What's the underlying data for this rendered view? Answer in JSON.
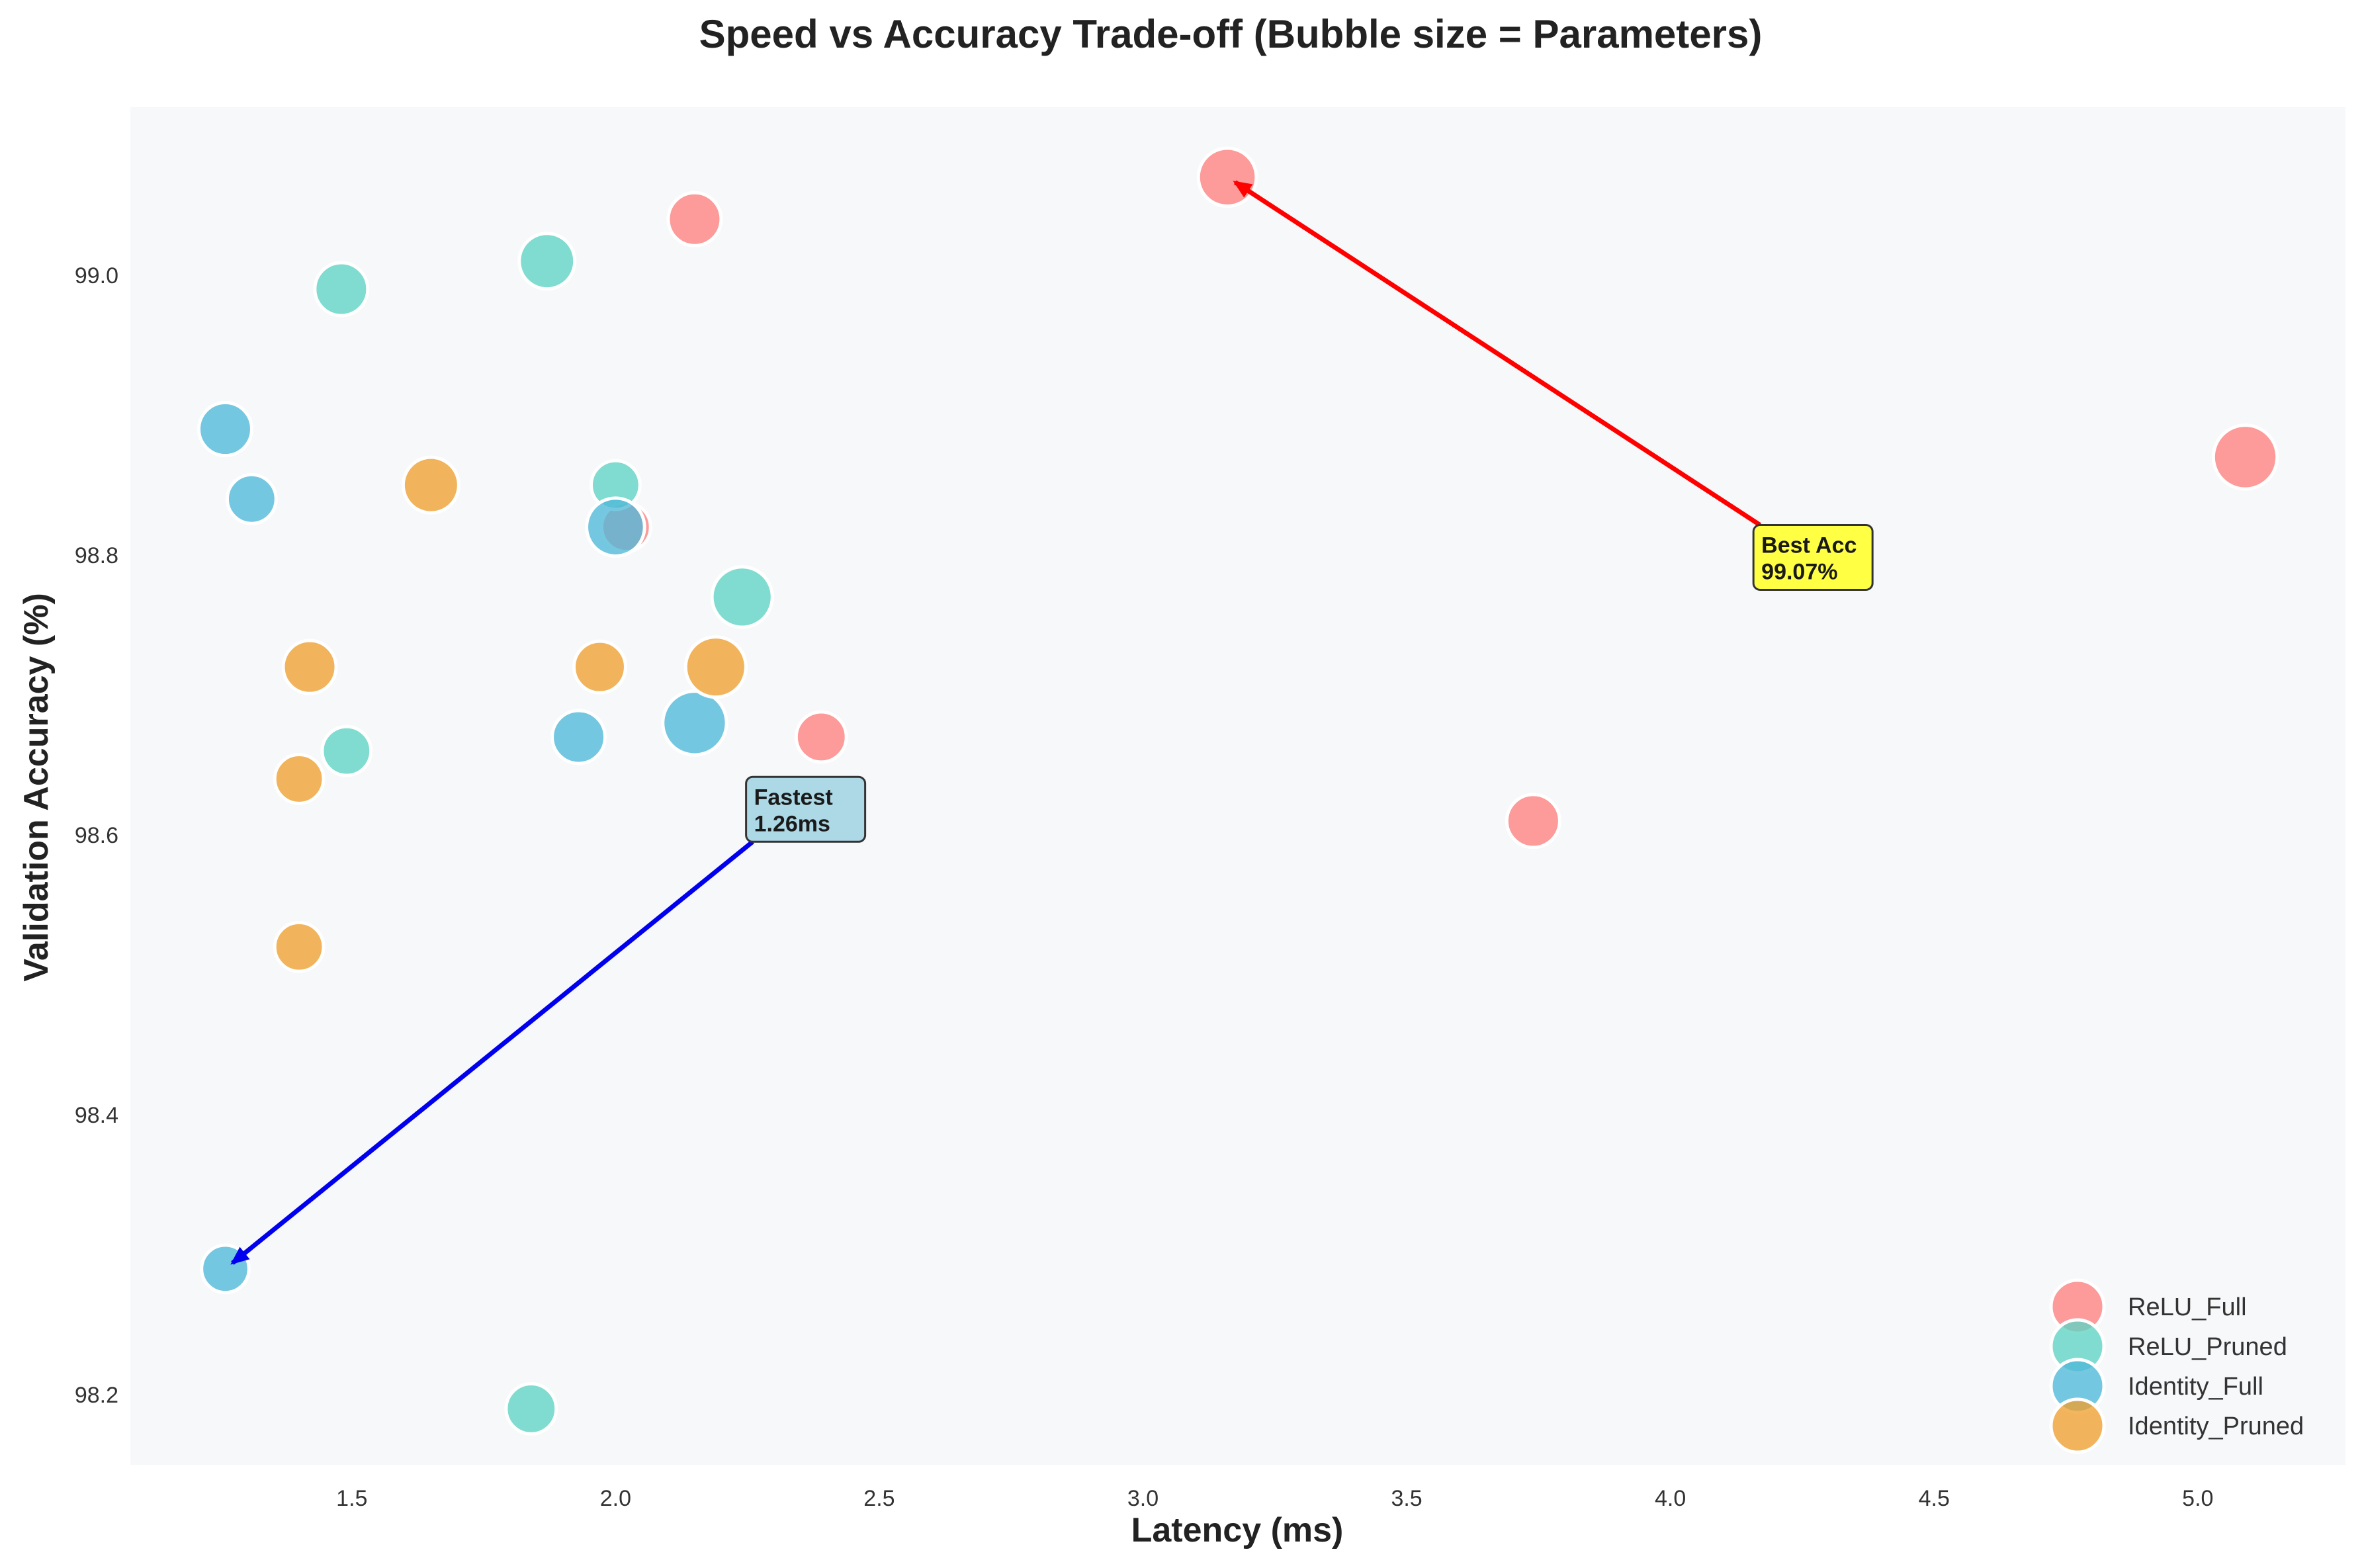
{
  "chart_data": {
    "type": "scatter",
    "title": "Speed vs Accuracy Trade-off (Bubble size = Parameters)",
    "xlabel": "Latency (ms)",
    "ylabel": "Validation Accuracy (%)",
    "xlim": [
      1.08,
      5.28
    ],
    "ylim": [
      98.15,
      99.12
    ],
    "xticks": [
      1.5,
      2.0,
      2.5,
      3.0,
      3.5,
      4.0,
      4.5,
      5.0
    ],
    "xtick_labels": [
      "1.5",
      "2.0",
      "2.5",
      "3.0",
      "3.5",
      "4.0",
      "4.5",
      "5.0"
    ],
    "yticks": [
      98.2,
      98.4,
      98.6,
      98.8,
      99.0
    ],
    "ytick_labels": [
      "98.2",
      "98.4",
      "98.6",
      "98.8",
      "99.0"
    ],
    "grid": false,
    "legend_position": "bottom-right",
    "series": [
      {
        "name": "ReLU_Full",
        "color": "#ff7f7f",
        "points": [
          {
            "x": 3.16,
            "y": 99.07,
            "size": 1.2
          },
          {
            "x": 2.15,
            "y": 99.04,
            "size": 1.0
          },
          {
            "x": 5.09,
            "y": 98.87,
            "size": 1.45
          },
          {
            "x": 2.02,
            "y": 98.82,
            "size": 0.85
          },
          {
            "x": 2.39,
            "y": 98.67,
            "size": 0.9
          },
          {
            "x": 3.74,
            "y": 98.61,
            "size": 1.0
          }
        ]
      },
      {
        "name": "ReLU_Pruned",
        "color": "#5fd3c4",
        "points": [
          {
            "x": 1.87,
            "y": 99.01,
            "size": 1.1
          },
          {
            "x": 1.48,
            "y": 98.99,
            "size": 1.0
          },
          {
            "x": 2.0,
            "y": 98.85,
            "size": 0.85
          },
          {
            "x": 2.24,
            "y": 98.77,
            "size": 1.3
          },
          {
            "x": 1.49,
            "y": 98.66,
            "size": 0.85
          },
          {
            "x": 1.84,
            "y": 98.19,
            "size": 0.9
          }
        ]
      },
      {
        "name": "Identity_Full",
        "color": "#4fb8d8",
        "points": [
          {
            "x": 1.26,
            "y": 98.89,
            "size": 1.0
          },
          {
            "x": 1.31,
            "y": 98.84,
            "size": 0.85
          },
          {
            "x": 2.0,
            "y": 98.82,
            "size": 1.2
          },
          {
            "x": 2.15,
            "y": 98.68,
            "size": 1.45
          },
          {
            "x": 1.93,
            "y": 98.67,
            "size": 1.0
          },
          {
            "x": 1.26,
            "y": 98.29,
            "size": 0.8
          }
        ]
      },
      {
        "name": "Identity_Pruned",
        "color": "#f0a030",
        "points": [
          {
            "x": 1.65,
            "y": 98.85,
            "size": 1.1
          },
          {
            "x": 1.42,
            "y": 98.72,
            "size": 1.0
          },
          {
            "x": 1.97,
            "y": 98.72,
            "size": 0.95
          },
          {
            "x": 2.19,
            "y": 98.72,
            "size": 1.3
          },
          {
            "x": 1.4,
            "y": 98.64,
            "size": 0.85
          },
          {
            "x": 1.4,
            "y": 98.52,
            "size": 0.85
          }
        ]
      }
    ],
    "annotations": [
      {
        "lines": [
          "Best Acc",
          "99.07%"
        ],
        "target": {
          "x": 3.16,
          "y": 99.07
        },
        "text_at": {
          "x": 4.17,
          "y": 98.795
        },
        "arrow_color": "#ff0000",
        "box_color": "#ffff44"
      },
      {
        "lines": [
          "Fastest",
          "1.26ms"
        ],
        "target": {
          "x": 1.26,
          "y": 98.29
        },
        "text_at": {
          "x": 2.26,
          "y": 98.615
        },
        "arrow_color": "#0000ee",
        "box_color": "#add8e6"
      }
    ]
  }
}
